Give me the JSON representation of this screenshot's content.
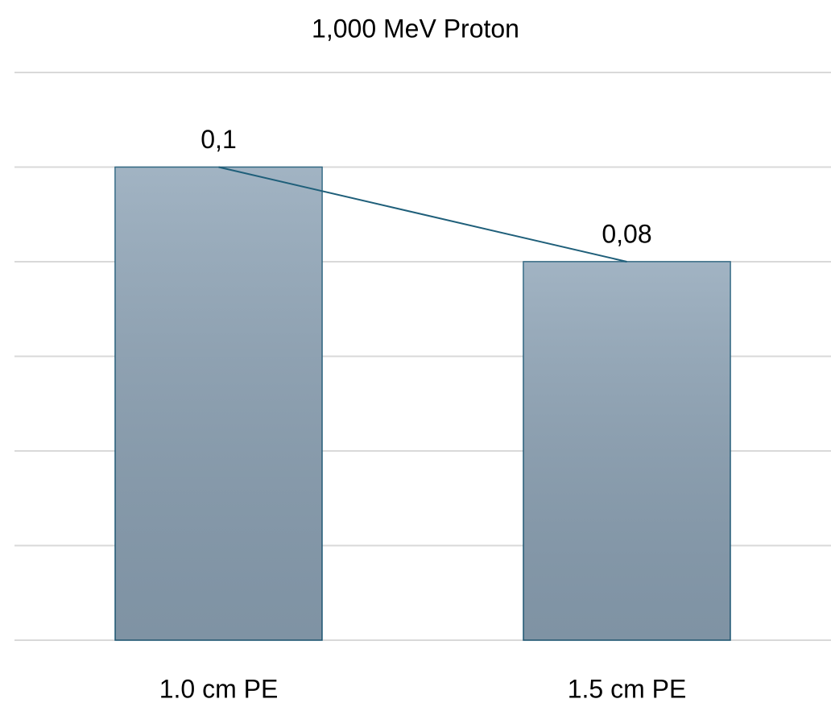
{
  "chart_data": {
    "type": "bar",
    "title": "1,000 MeV Proton",
    "categories": [
      "1.0 cm PE",
      "1.5 cm PE"
    ],
    "values": [
      0.1,
      0.08
    ],
    "value_labels": [
      "0,1",
      "0,08"
    ],
    "color": "#8da3b6",
    "edge_color": "#1f5a78",
    "line_color": "#1f5f7a",
    "connect_line": true,
    "ylim": [
      0,
      0.12
    ],
    "yticks": [
      0,
      0.02,
      0.04,
      0.06,
      0.08,
      0.1,
      0.12
    ],
    "grid": true
  }
}
